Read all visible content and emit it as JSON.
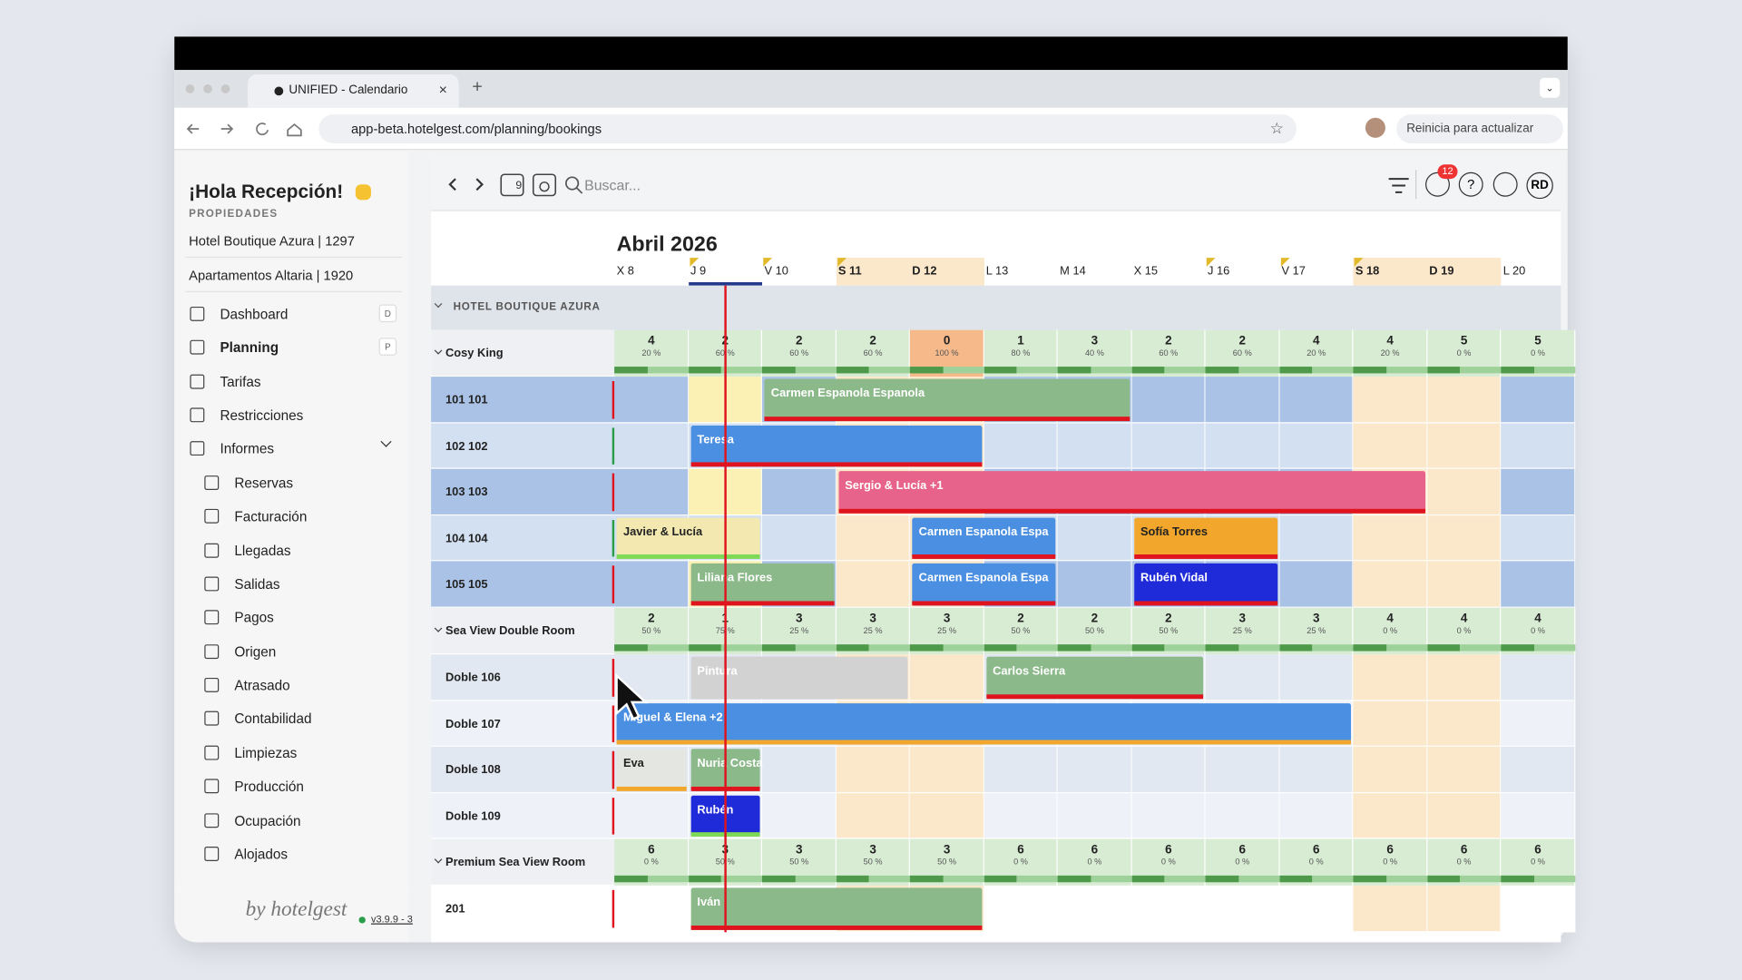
{
  "browser": {
    "tab_title": "UNIFIED - Calendario",
    "url": "app-beta.hotelgest.com/planning/bookings",
    "update_button": "Reinicia para actualizar"
  },
  "sidebar": {
    "greeting": "¡Hola Recepción!",
    "properties_label": "PROPIEDADES",
    "properties": [
      "Hotel Boutique Azura | 1297",
      "Apartamentos Altaria | 1920"
    ],
    "menu": [
      {
        "label": "Dashboard",
        "shortcut": "D"
      },
      {
        "label": "Planning",
        "shortcut": "P"
      },
      {
        "label": "Tarifas"
      },
      {
        "label": "Restricciones"
      },
      {
        "label": "Informes"
      }
    ],
    "reports": [
      "Reservas",
      "Facturación",
      "Llegadas",
      "Salidas",
      "Pagos",
      "Origen",
      "Atrasado",
      "Contabilidad",
      "Limpiezas",
      "Producción",
      "Ocupación",
      "Alojados"
    ],
    "brand": "by hotelgest",
    "version": "v3.9.9 - 3"
  },
  "toolbar": {
    "calendar_day": "9",
    "search_placeholder": "Buscar...",
    "notification_count": "12",
    "help": "?",
    "user_initials": "RD"
  },
  "calendar": {
    "month": "Abril 2026",
    "days": [
      "X 8",
      "J 9",
      "V 10",
      "S 11",
      "D 12",
      "L 13",
      "M 14",
      "X 15",
      "J 16",
      "V 17",
      "S 18",
      "D 19",
      "L 20"
    ],
    "hotel": "HOTEL BOUTIQUE AZURA",
    "room_types": [
      {
        "name": "Cosy King",
        "available": [
          4,
          2,
          2,
          2,
          0,
          1,
          3,
          2,
          2,
          4,
          4,
          5,
          5
        ],
        "occupancy": [
          "20 %",
          "60 %",
          "60 %",
          "60 %",
          "100 %",
          "80 %",
          "40 %",
          "60 %",
          "60 %",
          "20 %",
          "20 %",
          "0 %",
          "0 %"
        ],
        "rooms": [
          {
            "name": "101 101",
            "bookings": [
              {
                "guest": "Carmen Espanola Espanola",
                "start": 2,
                "nights": 5,
                "color": "#8cb98a",
                "status_color": "#e0141e"
              }
            ]
          },
          {
            "name": "102 102",
            "bookings": [
              {
                "guest": "Teresa",
                "start": 1,
                "nights": 4,
                "color": "#4a8fe2",
                "status_color": "#e0141e"
              }
            ]
          },
          {
            "name": "103 103",
            "bookings": [
              {
                "guest": "Sergio & Lucía +1",
                "start": 3,
                "nights": 8,
                "color": "#e8638b",
                "status_color": "#e0141e"
              }
            ]
          },
          {
            "name": "104 104",
            "bookings": [
              {
                "guest": "Javier & Lucía",
                "start": 0,
                "nights": 2,
                "color": "#f3e9b0",
                "status_color": "#7ed957",
                "text_color": "#222"
              },
              {
                "guest": "Carmen Espanola Espa",
                "start": 4,
                "nights": 2,
                "color": "#4a8fe2",
                "status_color": "#e0141e"
              },
              {
                "guest": "Sofía Torres",
                "start": 7,
                "nights": 2,
                "color": "#f2a62c",
                "status_color": "#e0141e",
                "text_color": "#222"
              }
            ]
          },
          {
            "name": "105 105",
            "bookings": [
              {
                "guest": "Liliana Flores",
                "start": 1,
                "nights": 2,
                "color": "#8cb98a",
                "status_color": "#e0141e"
              },
              {
                "guest": "Carmen Espanola Espa",
                "start": 4,
                "nights": 2,
                "color": "#4a8fe2",
                "status_color": "#e0141e"
              },
              {
                "guest": "Rubén Vidal",
                "start": 7,
                "nights": 2,
                "color": "#1f2ad8",
                "status_color": "#e0141e"
              }
            ]
          }
        ]
      },
      {
        "name": "Sea View Double Room",
        "available": [
          2,
          1,
          3,
          3,
          3,
          2,
          2,
          2,
          3,
          3,
          4,
          4,
          4
        ],
        "occupancy": [
          "50 %",
          "75 %",
          "25 %",
          "25 %",
          "25 %",
          "50 %",
          "50 %",
          "50 %",
          "25 %",
          "25 %",
          "0 %",
          "0 %",
          "0 %"
        ],
        "rooms": [
          {
            "name": "Doble 106",
            "bookings": [
              {
                "guest": "Pintura",
                "start": 1,
                "nights": 3,
                "color": "#d2d2d2",
                "status_color": "#d2d2d2"
              },
              {
                "guest": "Carlos Sierra",
                "start": 5,
                "nights": 3,
                "color": "#8cb98a",
                "status_color": "#e0141e"
              }
            ]
          },
          {
            "name": "Doble 107",
            "bookings": [
              {
                "guest": "Miguel & Elena +2",
                "start": 0,
                "nights": 10,
                "color": "#4a8fe2",
                "status_color": "#f2a62c"
              }
            ]
          },
          {
            "name": "Doble 108",
            "bookings": [
              {
                "guest": "Eva",
                "start": 0,
                "nights": 1,
                "color": "#e4e6e2",
                "status_color": "#f2a62c",
                "text_color": "#222"
              },
              {
                "guest": "Nuria Costa",
                "start": 1,
                "nights": 1,
                "color": "#8cb98a",
                "status_color": "#e0141e"
              }
            ]
          },
          {
            "name": "Doble 109",
            "bookings": [
              {
                "guest": "Rubén",
                "start": 1,
                "nights": 1,
                "color": "#1f2ad8",
                "status_color": "#7ed957"
              }
            ]
          }
        ]
      },
      {
        "name": "Premium Sea View Room",
        "available": [
          6,
          3,
          3,
          3,
          3,
          6,
          6,
          6,
          6,
          6,
          6,
          6,
          6
        ],
        "occupancy": [
          "0 %",
          "50 %",
          "50 %",
          "50 %",
          "50 %",
          "0 %",
          "0 %",
          "0 %",
          "0 %",
          "0 %",
          "0 %",
          "0 %",
          "0 %"
        ],
        "rooms": [
          {
            "name": "201",
            "bookings": [
              {
                "guest": "Iván",
                "start": 1,
                "nights": 4,
                "color": "#8cb98a",
                "status_color": "#e0141e"
              }
            ]
          }
        ]
      }
    ]
  }
}
